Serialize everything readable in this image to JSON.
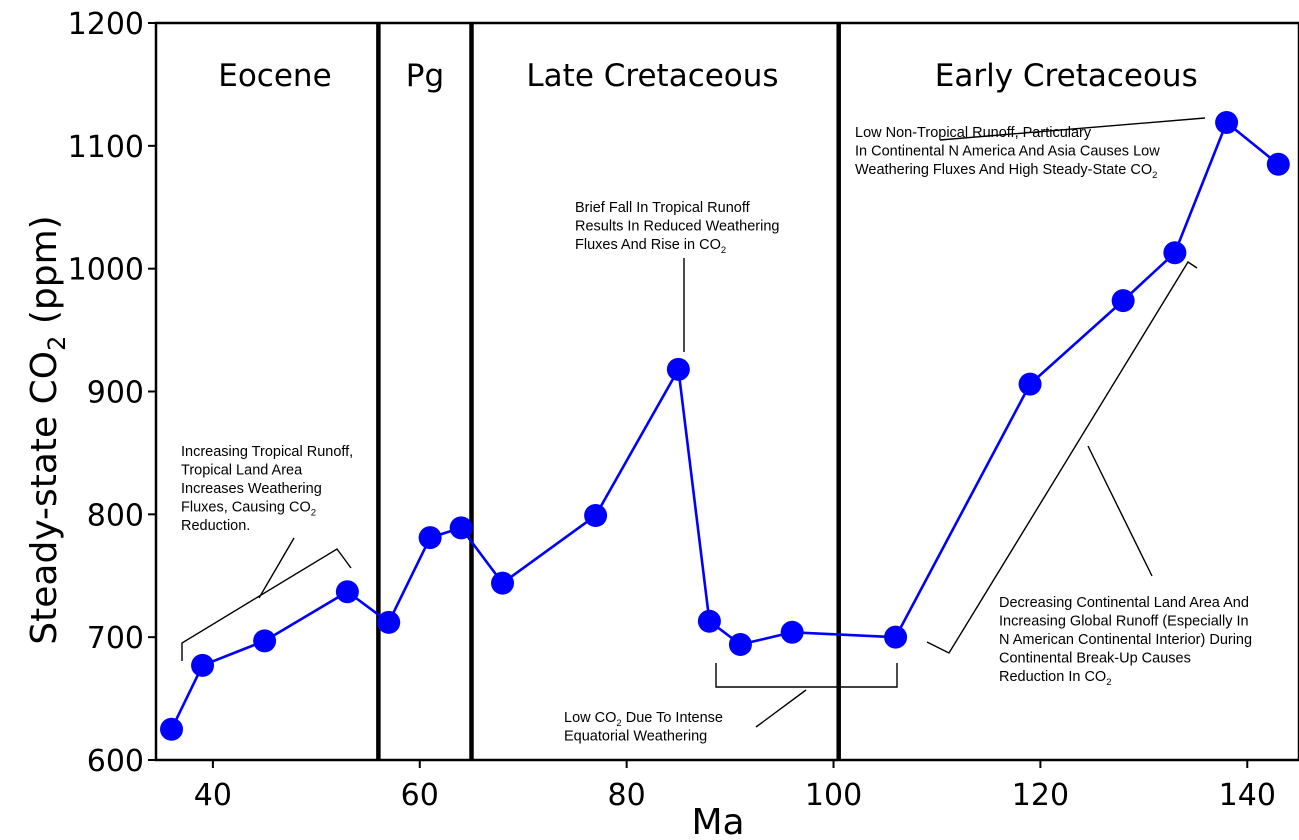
{
  "chart_data": {
    "type": "line",
    "xlabel": "Ma",
    "ylabel": {
      "pre": "Steady-state CO",
      "sub": "2",
      "post": " (ppm)"
    },
    "xlim": [
      34.5,
      145
    ],
    "ylim": [
      600,
      1200
    ],
    "xticks": [
      40,
      60,
      80,
      100,
      120,
      140
    ],
    "yticks": [
      600,
      700,
      800,
      900,
      1000,
      1100,
      1200
    ],
    "grid": false,
    "series": [
      {
        "color": "#0000ff",
        "x": [
          36,
          39,
          45,
          53,
          57,
          61,
          64,
          68,
          77,
          85,
          88,
          91,
          96,
          106,
          119,
          128,
          133,
          138,
          143
        ],
        "y": [
          625,
          677,
          697,
          737,
          712,
          781,
          789,
          744,
          799,
          918,
          713,
          694,
          704,
          700,
          906,
          974,
          1013,
          1119,
          1085
        ]
      }
    ],
    "period_boundaries": [
      56,
      65,
      100.5
    ],
    "periods": [
      {
        "label": "Eocene",
        "x": 46
      },
      {
        "label": "Pg",
        "x": 60.5
      },
      {
        "label": "Late Cretaceous",
        "x": 82.5
      },
      {
        "label": "Early Cretaceous",
        "x": 122.5
      }
    ],
    "annotations": [
      {
        "key": "a1",
        "lines": [
          [
            {
              "t": "Increasing Tropical Runoff,"
            }
          ],
          [
            {
              "t": "Tropical Land Area"
            }
          ],
          [
            {
              "t": "Increases Weathering"
            }
          ],
          [
            {
              "t": "Fluxes, Causing CO"
            },
            {
              "t": "2",
              "sub": true
            }
          ],
          [
            {
              "t": "Reduction."
            }
          ]
        ]
      },
      {
        "key": "a2",
        "lines": [
          [
            {
              "t": "Brief Fall In Tropical Runoff"
            }
          ],
          [
            {
              "t": "Results In Reduced Weathering"
            }
          ],
          [
            {
              "t": "Fluxes And Rise in CO"
            },
            {
              "t": "2",
              "sub": true
            }
          ]
        ]
      },
      {
        "key": "a3",
        "lines": [
          [
            {
              "t": "Low CO"
            },
            {
              "t": "2",
              "sub": true
            },
            {
              "t": " Due To Intense"
            }
          ],
          [
            {
              "t": "Equatorial Weathering"
            }
          ]
        ]
      },
      {
        "key": "a4",
        "lines": [
          [
            {
              "t": "Low Non-Tropical Runoff, Particulary"
            }
          ],
          [
            {
              "t": "In Continental N America And Asia Causes Low"
            }
          ],
          [
            {
              "t": "Weathering Fluxes And High Steady-State CO"
            },
            {
              "t": "2",
              "sub": true
            }
          ]
        ]
      },
      {
        "key": "a5",
        "lines": [
          [
            {
              "t": "Decreasing Continental Land Area And"
            }
          ],
          [
            {
              "t": "Increasing Global Runoff (Especially In"
            }
          ],
          [
            {
              "t": "N American Continental Interior) During"
            }
          ],
          [
            {
              "t": "Continental Break-Up Causes"
            }
          ],
          [
            {
              "t": "Reduction In CO"
            },
            {
              "t": "2",
              "sub": true
            }
          ]
        ]
      }
    ]
  }
}
